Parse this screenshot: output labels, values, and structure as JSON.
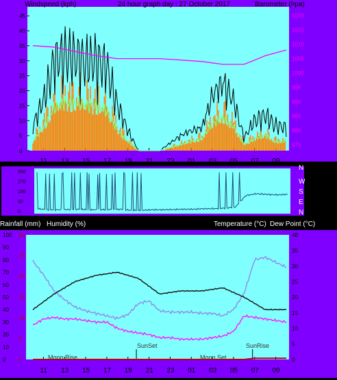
{
  "header": {
    "left": "Windspeed (kph)",
    "center": "24 hour graph day : 27 October 2017",
    "right": "Barometer (hpa)"
  },
  "wind_direction_letters": [
    "N",
    "W",
    "S",
    "E",
    "N"
  ],
  "lower_header": {
    "rainfall": "Rainfall (mm)",
    "humidity": "Humidity (%)",
    "temperature": "Temperature (°C)",
    "dewpoint": "Dew Point (°C)"
  },
  "annotations": {
    "sunset": "SunSet",
    "moonset": "Moon Set",
    "sunrise": "SunRise",
    "moonrise": "Moon Rise"
  },
  "colors": {
    "background": "#000000",
    "frame": "#8000ff",
    "plot": "#80ffff",
    "gust": "#000000",
    "wind_avg": "#80ff80",
    "wind_bar": "#ff8000",
    "barometer": "#ff00ff",
    "direction": "#1f4e79",
    "temperature": "#1a1a1a",
    "humidity": "#9090e8",
    "dewpoint": "#ff20ff",
    "rain": "#c00000"
  },
  "chart_data": [
    {
      "type": "line",
      "x_ticks": [
        "11",
        "13",
        "15",
        "17",
        "19",
        "21",
        "23",
        "01",
        "03",
        "05",
        "07",
        "09"
      ],
      "y_left": {
        "label": "Windspeed (kph)",
        "ticks": [
          0,
          5,
          10,
          15,
          20,
          25,
          30,
          35,
          40,
          45
        ],
        "ylim": [
          0,
          48
        ]
      },
      "y_right": {
        "label": "Barometer (hpa)",
        "ticks": [
          975,
          980,
          985,
          990,
          995,
          1000,
          1005,
          1010,
          1015,
          1020
        ],
        "ylim": [
          973,
          1023
        ]
      },
      "series": [
        {
          "name": "Barometer (hpa)",
          "axis": "right",
          "hours": [
            0,
            2,
            4,
            6,
            8,
            10,
            12,
            14,
            16,
            18,
            20,
            22,
            24
          ],
          "values": [
            1009.5,
            1009,
            1007.5,
            1006,
            1005,
            1005,
            1005,
            1004.5,
            1004,
            1003,
            1003,
            1006,
            1008
          ]
        },
        {
          "name": "gust (kph)",
          "axis": "left",
          "hours": [
            0,
            1,
            2,
            3,
            4,
            5,
            6,
            7,
            8,
            9,
            10,
            11,
            12,
            13,
            14,
            15,
            16,
            17,
            18,
            19,
            20,
            21,
            22,
            23,
            24
          ],
          "values": [
            10,
            20,
            35,
            38,
            37,
            35,
            36,
            33,
            18,
            8,
            0,
            0,
            0,
            3,
            6,
            8,
            9,
            22,
            27,
            20,
            5,
            12,
            14,
            10,
            9
          ]
        },
        {
          "name": "average (kph)",
          "axis": "left",
          "hours": [
            0,
            1,
            2,
            3,
            4,
            5,
            6,
            7,
            8,
            9,
            10,
            11,
            12,
            13,
            14,
            15,
            16,
            17,
            18,
            19,
            20,
            21,
            22,
            23,
            24
          ],
          "values": [
            3,
            8,
            14,
            16,
            16,
            15,
            15,
            13,
            7,
            3,
            0,
            0,
            0,
            1,
            2,
            3,
            4,
            9,
            11,
            8,
            2,
            4,
            5,
            3,
            3
          ]
        }
      ]
    },
    {
      "type": "line",
      "y_ticks": [
        0,
        90,
        180,
        270,
        360
      ],
      "series": [
        {
          "name": "wind direction",
          "hours": [
            0,
            1,
            2,
            3,
            4,
            5,
            6,
            7,
            8,
            9,
            10,
            11,
            12,
            13,
            14,
            15,
            16,
            17,
            18,
            19,
            20,
            21,
            22,
            23,
            24
          ],
          "values": [
            20,
            10,
            10,
            12,
            15,
            10,
            10,
            12,
            15,
            5,
            5,
            10,
            10,
            12,
            15,
            15,
            20,
            20,
            25,
            35,
            140,
            155,
            150,
            145,
            150
          ]
        }
      ]
    },
    {
      "type": "line",
      "x_ticks": [
        "11",
        "13",
        "15",
        "17",
        "19",
        "21",
        "23",
        "01",
        "03",
        "05",
        "07",
        "09"
      ],
      "y_left": {
        "label": "Humidity (%)",
        "ticks": [
          0,
          10,
          20,
          30,
          40,
          50,
          60,
          70,
          80,
          90,
          100
        ],
        "ylim": [
          0,
          100
        ]
      },
      "y_left_rain": {
        "label": "Rainfall (mm)",
        "ticks": [
          0,
          5,
          10,
          15,
          20,
          25,
          30
        ],
        "ylim": [
          0,
          30
        ]
      },
      "y_right": {
        "label": "Temperature (°C)",
        "ticks": [
          0,
          5,
          10,
          15,
          20,
          25,
          30,
          35,
          40
        ],
        "ylim": [
          0,
          40
        ]
      },
      "series": [
        {
          "name": "Temperature (°C)",
          "axis": "right",
          "hours": [
            0,
            2,
            4,
            6,
            8,
            10,
            12,
            14,
            16,
            18,
            20,
            22,
            24
          ],
          "values": [
            16,
            21,
            25,
            27,
            28,
            26,
            21,
            22,
            22,
            23,
            20,
            16,
            16
          ]
        },
        {
          "name": "Humidity (%)",
          "axis": "left",
          "hours": [
            0,
            1,
            2,
            3,
            4,
            5,
            6,
            7,
            8,
            9,
            10,
            11,
            12,
            13,
            14,
            15,
            16,
            17,
            18,
            19,
            20,
            21,
            22,
            23,
            24
          ],
          "values": [
            79,
            68,
            55,
            48,
            42,
            39,
            37,
            35,
            33,
            36,
            45,
            47,
            39,
            38,
            38,
            38,
            37,
            37,
            35,
            40,
            53,
            80,
            82,
            78,
            74
          ]
        },
        {
          "name": "Dew Point (°C)",
          "axis": "right",
          "hours": [
            0,
            1,
            2,
            3,
            4,
            5,
            6,
            7,
            8,
            9,
            10,
            11,
            12,
            13,
            14,
            15,
            16,
            17,
            18,
            19,
            20,
            21,
            22,
            23,
            24
          ],
          "values": [
            11,
            13,
            13.5,
            13,
            13,
            12.5,
            12,
            12,
            10,
            9,
            8.5,
            8,
            7,
            7,
            6.5,
            6.5,
            6.5,
            7,
            7.5,
            9,
            14,
            13.5,
            13,
            12.5,
            12
          ]
        },
        {
          "name": "Rainfall (mm)",
          "axis": "rain",
          "hours": [
            0,
            20,
            21,
            24
          ],
          "values": [
            0,
            0,
            0.3,
            0.3
          ]
        }
      ]
    }
  ]
}
